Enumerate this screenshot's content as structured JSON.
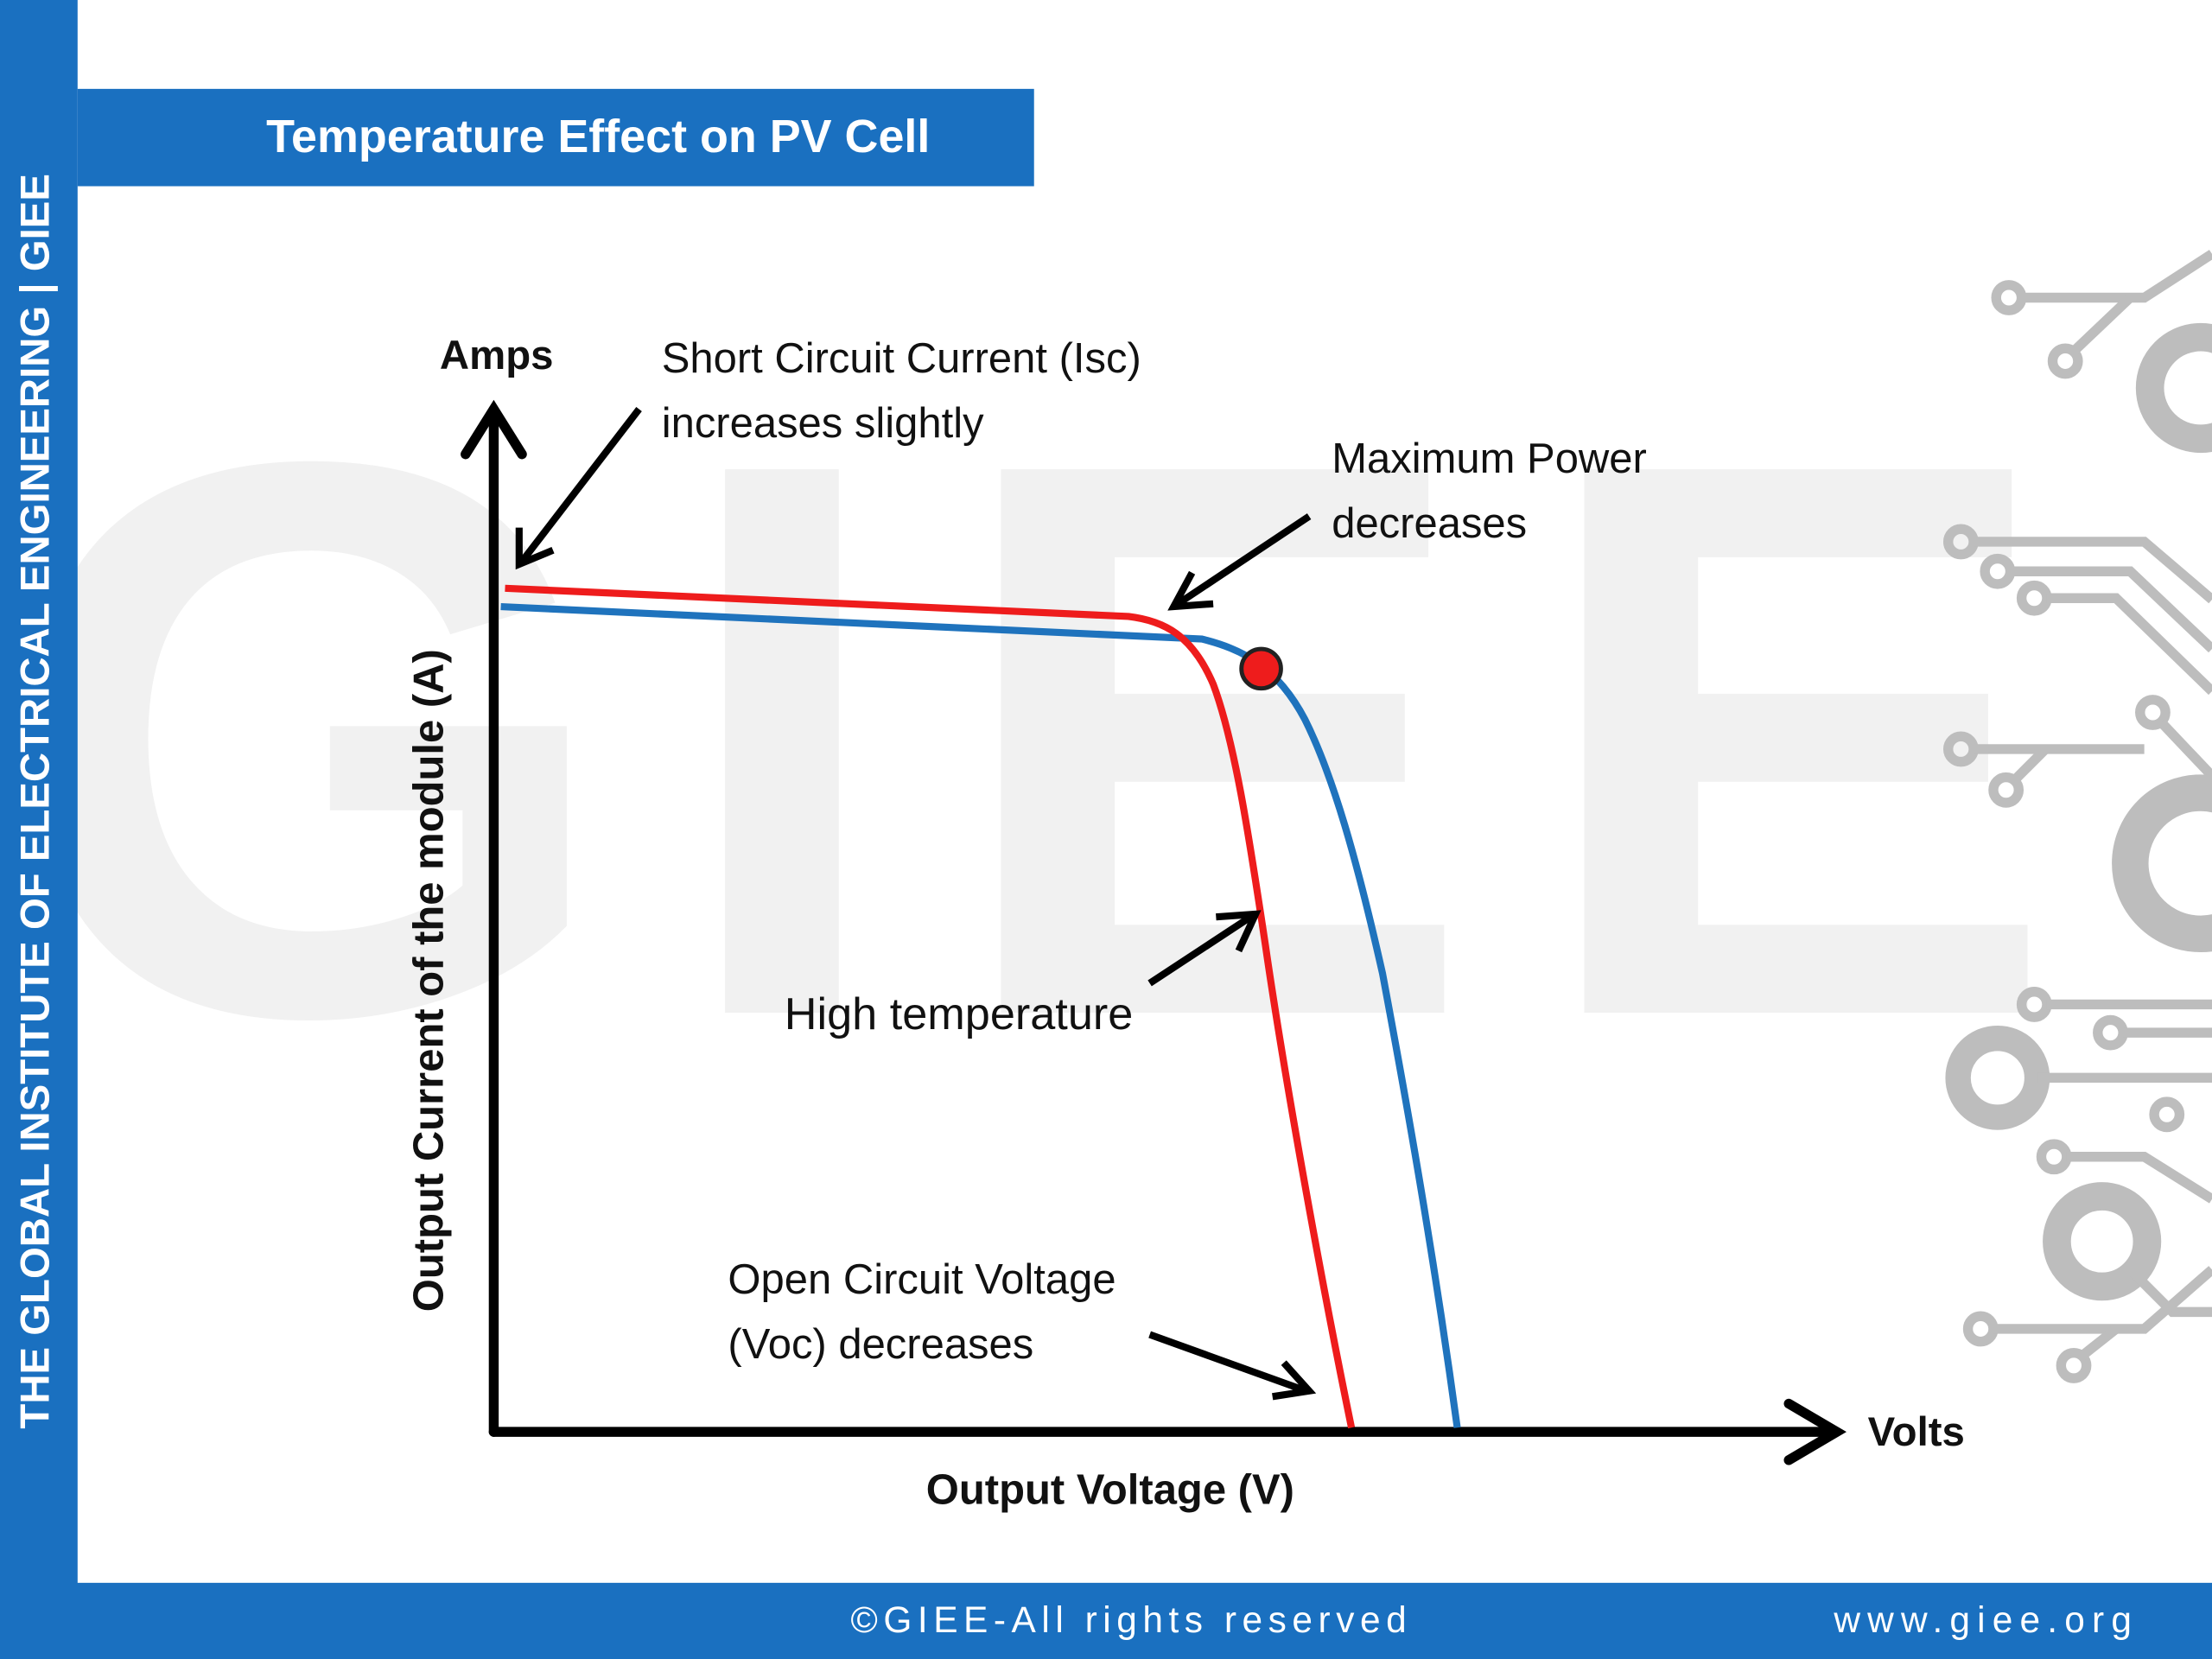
{
  "sidebar": {
    "text": "THE GLOBAL INSTITUTE OF ELECTRICAL ENGINEERING | GIEE"
  },
  "header": {
    "title": "Temperature Effect on PV Cell"
  },
  "watermark": "GIEE",
  "diagram": {
    "y_axis_label": "Amps",
    "x_axis_label": "Volts",
    "y_title": "Output Current of  the module (A)",
    "x_title": "Output Voltage (V)",
    "annotations": [
      {
        "lines": [
          "Short Circuit Current (Isc)",
          "increases slightly"
        ]
      },
      {
        "lines": [
          "Maximum Power",
          "decreases"
        ]
      },
      {
        "lines": [
          "High temperature"
        ]
      },
      {
        "lines": [
          "Open Circuit Voltage",
          "(Voc) decreases"
        ]
      }
    ]
  },
  "footer": {
    "copyright": "©GIEE-All rights reserved",
    "website": "www.giee.org"
  }
}
